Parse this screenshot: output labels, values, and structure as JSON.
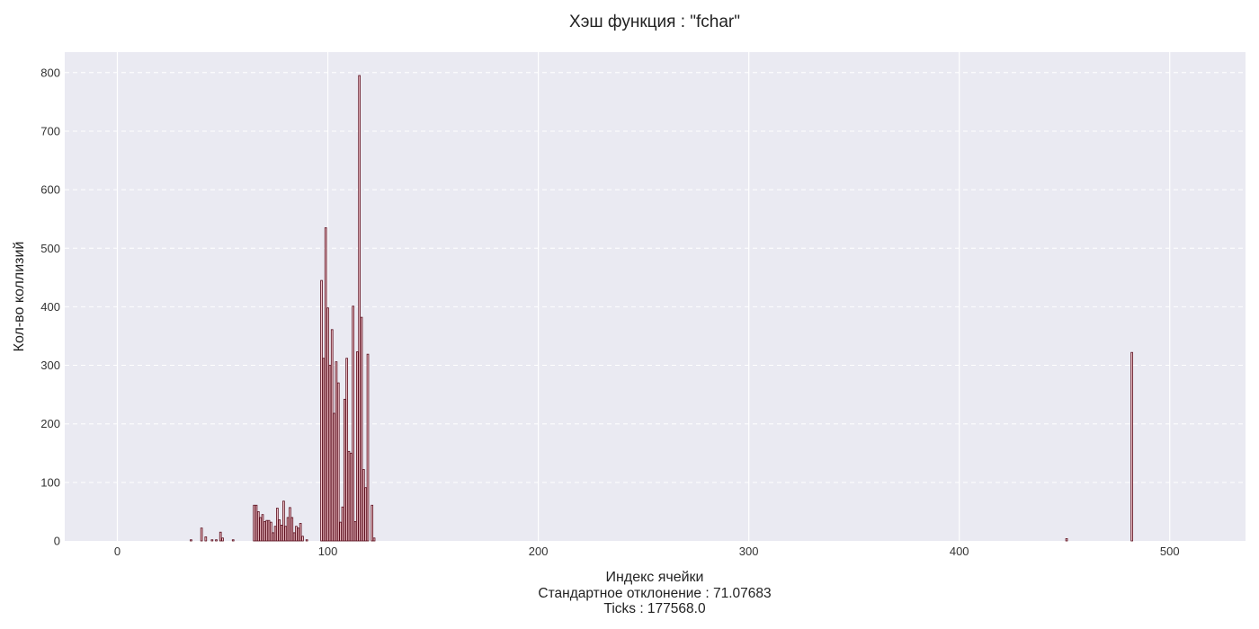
{
  "chart_data": {
    "type": "bar",
    "title": "Хэш функция : \"fchar\"",
    "xlabel": "Индекс ячейки",
    "ylabel": "Кол-во коллизий",
    "std_label": "Стандартное отклонение : 71.07683",
    "ticks_label": "Ticks : 177568.0",
    "xlim": [
      -25,
      536
    ],
    "ylim": [
      0,
      835
    ],
    "xticks": [
      0,
      100,
      200,
      300,
      400,
      500
    ],
    "yticks": [
      0,
      100,
      200,
      300,
      400,
      500,
      600,
      700,
      800
    ],
    "grid": true,
    "colors": {
      "bar_fill": "#f3c6cc",
      "bar_edge": "#5a0d1c",
      "plot_bg": "#eaeaf2",
      "grid": "#ffffff"
    },
    "bars": [
      {
        "x": 35,
        "y": 2
      },
      {
        "x": 40,
        "y": 22
      },
      {
        "x": 42,
        "y": 7
      },
      {
        "x": 45,
        "y": 2
      },
      {
        "x": 47,
        "y": 2
      },
      {
        "x": 49,
        "y": 15
      },
      {
        "x": 50,
        "y": 5
      },
      {
        "x": 55,
        "y": 2
      },
      {
        "x": 65,
        "y": 61
      },
      {
        "x": 66,
        "y": 61
      },
      {
        "x": 67,
        "y": 50
      },
      {
        "x": 68,
        "y": 40
      },
      {
        "x": 69,
        "y": 45
      },
      {
        "x": 70,
        "y": 33
      },
      {
        "x": 71,
        "y": 35
      },
      {
        "x": 72,
        "y": 35
      },
      {
        "x": 73,
        "y": 32
      },
      {
        "x": 74,
        "y": 14
      },
      {
        "x": 75,
        "y": 25
      },
      {
        "x": 76,
        "y": 56
      },
      {
        "x": 77,
        "y": 36
      },
      {
        "x": 78,
        "y": 27
      },
      {
        "x": 79,
        "y": 68
      },
      {
        "x": 80,
        "y": 25
      },
      {
        "x": 81,
        "y": 40
      },
      {
        "x": 82,
        "y": 57
      },
      {
        "x": 83,
        "y": 40
      },
      {
        "x": 84,
        "y": 14
      },
      {
        "x": 85,
        "y": 25
      },
      {
        "x": 86,
        "y": 22
      },
      {
        "x": 87,
        "y": 30
      },
      {
        "x": 88,
        "y": 8
      },
      {
        "x": 90,
        "y": 2
      },
      {
        "x": 97,
        "y": 445
      },
      {
        "x": 98,
        "y": 312
      },
      {
        "x": 99,
        "y": 535
      },
      {
        "x": 100,
        "y": 398
      },
      {
        "x": 101,
        "y": 300
      },
      {
        "x": 102,
        "y": 361
      },
      {
        "x": 103,
        "y": 218
      },
      {
        "x": 104,
        "y": 306
      },
      {
        "x": 105,
        "y": 270
      },
      {
        "x": 106,
        "y": 32
      },
      {
        "x": 107,
        "y": 58
      },
      {
        "x": 108,
        "y": 242
      },
      {
        "x": 109,
        "y": 312
      },
      {
        "x": 110,
        "y": 153
      },
      {
        "x": 111,
        "y": 150
      },
      {
        "x": 112,
        "y": 401
      },
      {
        "x": 113,
        "y": 33
      },
      {
        "x": 114,
        "y": 323
      },
      {
        "x": 115,
        "y": 795
      },
      {
        "x": 116,
        "y": 382
      },
      {
        "x": 117,
        "y": 122
      },
      {
        "x": 118,
        "y": 91
      },
      {
        "x": 119,
        "y": 319
      },
      {
        "x": 121,
        "y": 61
      },
      {
        "x": 122,
        "y": 5
      },
      {
        "x": 451,
        "y": 4
      },
      {
        "x": 482,
        "y": 322
      }
    ]
  }
}
